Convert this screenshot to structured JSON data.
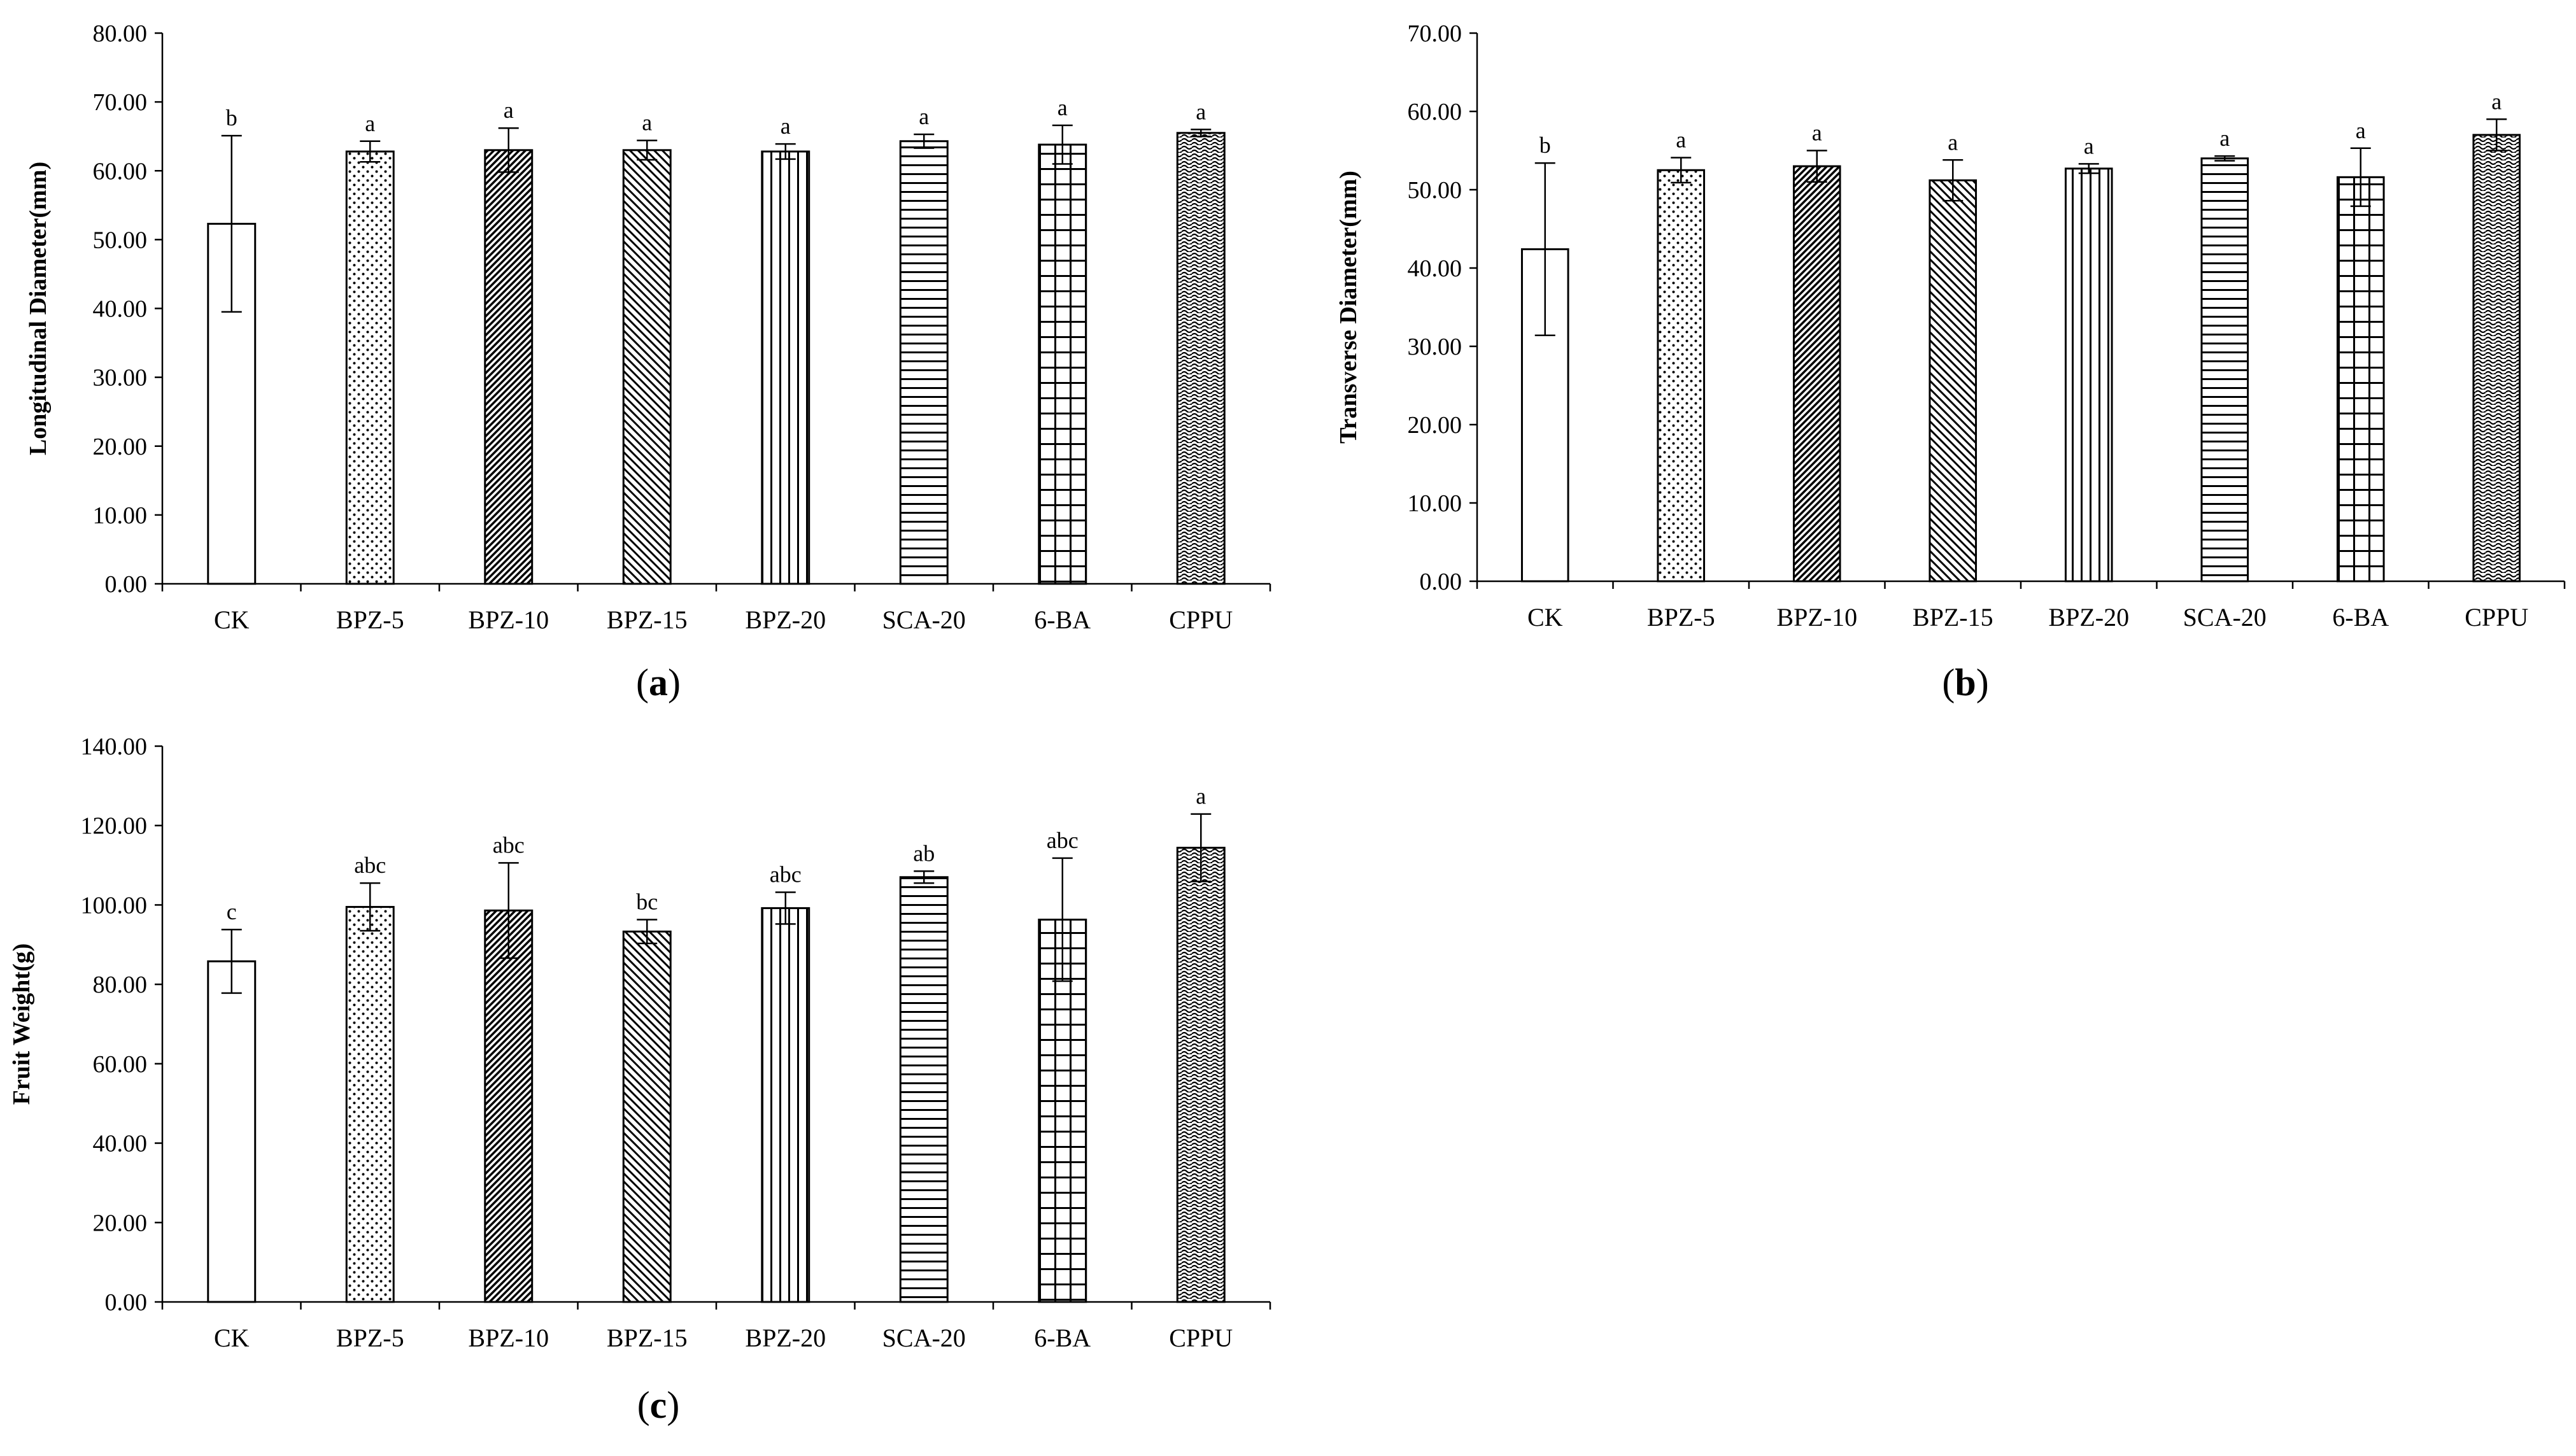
{
  "chart_data": [
    {
      "panel": "a",
      "type": "bar",
      "ylabel": "Longitudinal Diameter(mm)",
      "xlabel": "",
      "title": "",
      "categories": [
        "CK",
        "BPZ-5",
        "BPZ-10",
        "BPZ-15",
        "BPZ-20",
        "SCA-20",
        "6-BA",
        "CPPU"
      ],
      "values": [
        52.3,
        62.8,
        63.0,
        63.0,
        62.8,
        64.3,
        63.8,
        65.5
      ],
      "errors": [
        12.8,
        1.5,
        3.2,
        1.4,
        1.1,
        1.0,
        2.8,
        0.5
      ],
      "significance": [
        "b",
        "a",
        "a",
        "a",
        "a",
        "a",
        "a",
        "a"
      ],
      "patterns": [
        "blank",
        "dots",
        "dense-diagonal",
        "diagonal",
        "vertical",
        "horizontal",
        "grid",
        "wave"
      ],
      "ylim": [
        0,
        80
      ],
      "yticks": [
        0,
        10,
        20,
        30,
        40,
        50,
        60,
        70,
        80
      ],
      "ytick_labels": [
        "0.00",
        "10.00",
        "20.00",
        "30.00",
        "40.00",
        "50.00",
        "60.00",
        "70.00",
        "80.00"
      ],
      "panel_label": "a"
    },
    {
      "panel": "b",
      "type": "bar",
      "ylabel": "Transverse Diameter(mm)",
      "xlabel": "",
      "title": "",
      "categories": [
        "CK",
        "BPZ-5",
        "BPZ-10",
        "BPZ-15",
        "BPZ-20",
        "SCA-20",
        "6-BA",
        "CPPU"
      ],
      "values": [
        42.4,
        52.5,
        53.0,
        51.2,
        52.7,
        54.0,
        51.6,
        57.0
      ],
      "errors": [
        11.0,
        1.6,
        2.0,
        2.6,
        0.6,
        0.3,
        3.7,
        2.0
      ],
      "significance": [
        "b",
        "a",
        "a",
        "a",
        "a",
        "a",
        "a",
        "a"
      ],
      "patterns": [
        "blank",
        "dots",
        "dense-diagonal",
        "diagonal",
        "vertical",
        "horizontal",
        "grid",
        "wave"
      ],
      "ylim": [
        0,
        70
      ],
      "yticks": [
        0,
        10,
        20,
        30,
        40,
        50,
        60,
        70
      ],
      "ytick_labels": [
        "0.00",
        "10.00",
        "20.00",
        "30.00",
        "40.00",
        "50.00",
        "60.00",
        "70.00"
      ],
      "panel_label": "b"
    },
    {
      "panel": "c",
      "type": "bar",
      "ylabel": "Fruit Weight(g)",
      "xlabel": "",
      "title": "",
      "categories": [
        "CK",
        "BPZ-5",
        "BPZ-10",
        "BPZ-15",
        "BPZ-20",
        "SCA-20",
        "6-BA",
        "CPPU"
      ],
      "values": [
        85.8,
        99.5,
        98.6,
        93.3,
        99.2,
        107.0,
        96.3,
        114.4
      ],
      "errors": [
        8.0,
        6.0,
        12.0,
        3.0,
        4.0,
        1.5,
        15.5,
        8.5
      ],
      "significance": [
        "c",
        "abc",
        "abc",
        "bc",
        "abc",
        "ab",
        "abc",
        "a"
      ],
      "patterns": [
        "blank",
        "dots",
        "dense-diagonal",
        "diagonal",
        "vertical",
        "horizontal",
        "grid",
        "wave"
      ],
      "ylim": [
        0,
        140
      ],
      "yticks": [
        0,
        20,
        40,
        60,
        80,
        100,
        120,
        140
      ],
      "ytick_labels": [
        "0.00",
        "20.00",
        "40.00",
        "60.00",
        "80.00",
        "100.00",
        "120.00",
        "140.00"
      ],
      "panel_label": "c"
    }
  ]
}
